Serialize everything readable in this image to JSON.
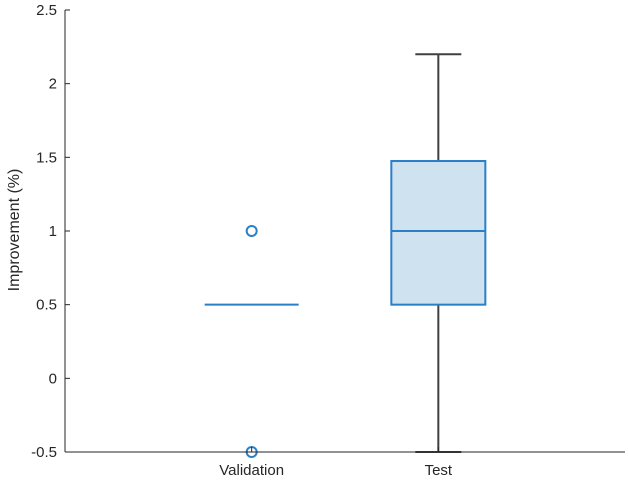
{
  "chart_data": {
    "type": "box",
    "ylabel": "Improvement (%)",
    "xlabel": "",
    "ylim": [
      -0.5,
      2.5
    ],
    "y_ticks": [
      -0.5,
      0,
      0.5,
      1,
      1.5,
      2,
      2.5
    ],
    "y_tick_labels": [
      "-0.5",
      "0",
      "0.5",
      "1",
      "1.5",
      "2",
      "2.5"
    ],
    "categories": [
      "Validation",
      "Test"
    ],
    "grid": false,
    "colors": {
      "box_edge": "#2a7fc7",
      "box_fill": "#cfe2f0",
      "whisker": "#404040",
      "axis": "#262626"
    },
    "boxes": [
      {
        "category": "Validation",
        "q1": 0.5,
        "median": 0.5,
        "q3": 0.5,
        "whisker_low": 0.5,
        "whisker_high": 0.5,
        "outliers": [
          1,
          -0.5
        ]
      },
      {
        "category": "Test",
        "q1": 0.5,
        "median": 1,
        "q3": 1.475,
        "whisker_low": -0.5,
        "whisker_high": 2.2,
        "outliers": []
      }
    ]
  }
}
